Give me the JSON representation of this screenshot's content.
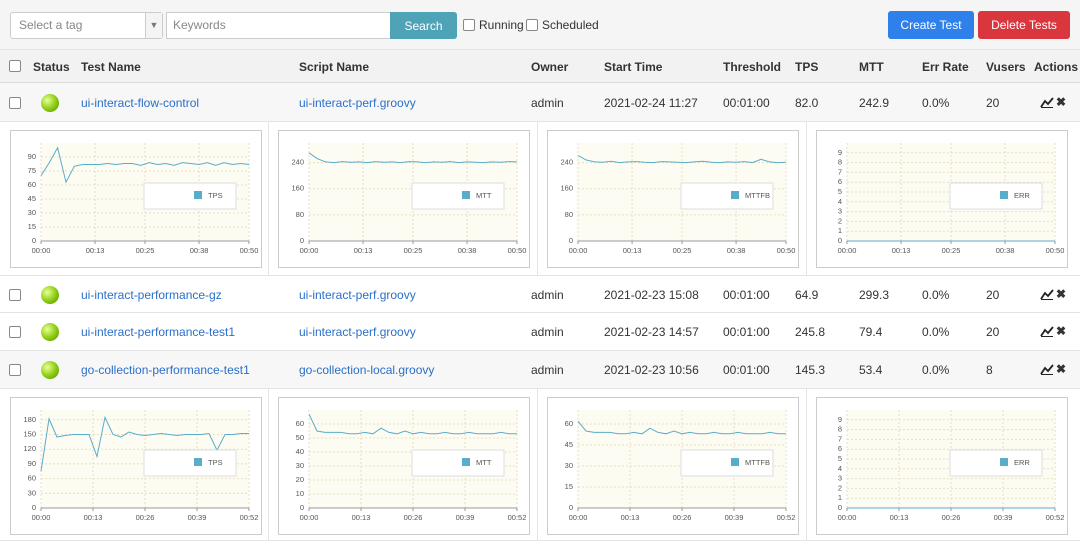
{
  "toolbar": {
    "tag_select": "Select a tag",
    "keywords": "Keywords",
    "search": "Search",
    "running": "Running",
    "scheduled": "Scheduled",
    "create": "Create Test",
    "delete": "Delete Tests"
  },
  "table": {
    "columns": [
      "Status",
      "Test Name",
      "Script Name",
      "Owner",
      "Start Time",
      "Threshold",
      "TPS",
      "MTT",
      "Err Rate",
      "Vusers",
      "Actions"
    ],
    "rows": [
      [
        "ui-interact-flow-control",
        "ui-interact-perf.groovy",
        "admin",
        "2021-02-24 11:27",
        "00:01:00",
        "82.0",
        "242.9",
        "0.0%",
        "20"
      ],
      [
        "ui-interact-performance-gz",
        "ui-interact-perf.groovy",
        "admin",
        "2021-02-23 15:08",
        "00:01:00",
        "64.9",
        "299.3",
        "0.0%",
        "20"
      ],
      [
        "ui-interact-performance-test1",
        "ui-interact-perf.groovy",
        "admin",
        "2021-02-23 14:57",
        "00:01:00",
        "245.8",
        "79.4",
        "0.0%",
        "20"
      ],
      [
        "go-collection-performance-test1",
        "go-collection-local.groovy",
        "admin",
        "2021-02-23 10:56",
        "00:01:00",
        "145.3",
        "53.4",
        "0.0%",
        "8"
      ]
    ]
  },
  "chart_data": [
    {
      "type": "line",
      "x": [
        0,
        2,
        4,
        6,
        8,
        10,
        12,
        14,
        16,
        18,
        20,
        22,
        24,
        26,
        28,
        30,
        32,
        34,
        36,
        38,
        40,
        42,
        44,
        46,
        48,
        50
      ],
      "series": [
        {
          "name": "TPS",
          "color": "#5aaccb",
          "values": [
            70,
            84,
            100,
            63,
            80,
            82,
            82,
            82,
            83,
            82,
            83,
            83,
            81,
            84,
            82,
            83,
            81,
            84,
            83,
            82,
            84,
            81,
            84,
            82,
            83,
            82
          ]
        }
      ],
      "xlim": [
        0,
        50
      ],
      "ylim": [
        0,
        105
      ],
      "yticks": [
        0,
        15,
        30,
        45,
        60,
        75,
        90
      ],
      "xticks": [
        {
          "value": 0,
          "label": "00:00"
        },
        {
          "value": 13,
          "label": "00:13"
        },
        {
          "value": 25,
          "label": "00:25"
        },
        {
          "value": 38,
          "label": "00:38"
        },
        {
          "value": 50,
          "label": "00:50"
        }
      ],
      "grid": true
    },
    {
      "type": "line",
      "x": [
        0,
        2,
        4,
        6,
        8,
        10,
        12,
        14,
        16,
        18,
        20,
        22,
        24,
        26,
        28,
        30,
        32,
        34,
        36,
        38,
        40,
        42,
        44,
        46,
        48,
        50
      ],
      "series": [
        {
          "name": "MTT",
          "color": "#5aaccb",
          "values": [
            270,
            252,
            242,
            240,
            243,
            241,
            242,
            240,
            243,
            241,
            242,
            240,
            243,
            242,
            240,
            242,
            241,
            243,
            240,
            242,
            241,
            240,
            242,
            241,
            243,
            242
          ]
        }
      ],
      "xlim": [
        0,
        50
      ],
      "ylim": [
        0,
        300
      ],
      "yticks": [
        0,
        80,
        160,
        240
      ],
      "xticks": [
        {
          "value": 0,
          "label": "00:00"
        },
        {
          "value": 13,
          "label": "00:13"
        },
        {
          "value": 25,
          "label": "00:25"
        },
        {
          "value": 38,
          "label": "00:38"
        },
        {
          "value": 50,
          "label": "00:50"
        }
      ],
      "grid": true
    },
    {
      "type": "line",
      "x": [
        0,
        2,
        4,
        6,
        8,
        10,
        12,
        14,
        16,
        18,
        20,
        22,
        24,
        26,
        28,
        30,
        32,
        34,
        36,
        38,
        40,
        42,
        44,
        46,
        48,
        50
      ],
      "series": [
        {
          "name": "MTTFB",
          "color": "#5aaccb",
          "values": [
            262,
            248,
            242,
            241,
            244,
            240,
            242,
            243,
            241,
            240,
            243,
            242,
            241,
            240,
            242,
            244,
            241,
            240,
            242,
            241,
            243,
            240,
            250,
            242,
            240,
            241
          ]
        }
      ],
      "xlim": [
        0,
        50
      ],
      "ylim": [
        0,
        300
      ],
      "yticks": [
        0,
        80,
        160,
        240
      ],
      "xticks": [
        {
          "value": 0,
          "label": "00:00"
        },
        {
          "value": 13,
          "label": "00:13"
        },
        {
          "value": 25,
          "label": "00:25"
        },
        {
          "value": 38,
          "label": "00:38"
        },
        {
          "value": 50,
          "label": "00:50"
        }
      ],
      "grid": true
    },
    {
      "type": "line",
      "x": [
        0,
        2,
        4,
        6,
        8,
        10,
        12,
        14,
        16,
        18,
        20,
        22,
        24,
        26,
        28,
        30,
        32,
        34,
        36,
        38,
        40,
        42,
        44,
        46,
        48,
        50
      ],
      "series": [
        {
          "name": "ERR",
          "color": "#5aaccb",
          "values": [
            0,
            0,
            0,
            0,
            0,
            0,
            0,
            0,
            0,
            0,
            0,
            0,
            0,
            0,
            0,
            0,
            0,
            0,
            0,
            0,
            0,
            0,
            0,
            0,
            0,
            0
          ]
        }
      ],
      "xlim": [
        0,
        50
      ],
      "ylim": [
        0,
        10
      ],
      "yticks": [
        0,
        1,
        2,
        3,
        4,
        5,
        6,
        7,
        8,
        9
      ],
      "xticks": [
        {
          "value": 0,
          "label": "00:00"
        },
        {
          "value": 13,
          "label": "00:13"
        },
        {
          "value": 25,
          "label": "00:25"
        },
        {
          "value": 38,
          "label": "00:38"
        },
        {
          "value": 50,
          "label": "00:50"
        }
      ],
      "grid": true
    },
    {
      "type": "line",
      "x": [
        0,
        2,
        4,
        6,
        8,
        10,
        12,
        14,
        16,
        18,
        20,
        22,
        24,
        26,
        28,
        30,
        32,
        34,
        36,
        38,
        40,
        42,
        44,
        46,
        48,
        50,
        52
      ],
      "series": [
        {
          "name": "TPS",
          "color": "#5aaccb",
          "values": [
            75,
            182,
            145,
            148,
            150,
            150,
            150,
            105,
            185,
            150,
            145,
            155,
            150,
            148,
            150,
            152,
            150,
            148,
            150,
            150,
            150,
            152,
            118,
            150,
            150,
            152,
            152
          ]
        }
      ],
      "xlim": [
        0,
        52
      ],
      "ylim": [
        0,
        200
      ],
      "yticks": [
        0,
        30,
        60,
        90,
        120,
        150,
        180
      ],
      "xticks": [
        {
          "value": 0,
          "label": "00:00"
        },
        {
          "value": 13,
          "label": "00:13"
        },
        {
          "value": 26,
          "label": "00:26"
        },
        {
          "value": 39,
          "label": "00:39"
        },
        {
          "value": 52,
          "label": "00:52"
        }
      ],
      "grid": true
    },
    {
      "type": "line",
      "x": [
        0,
        2,
        4,
        6,
        8,
        10,
        12,
        14,
        16,
        18,
        20,
        22,
        24,
        26,
        28,
        30,
        32,
        34,
        36,
        38,
        40,
        42,
        44,
        46,
        48,
        50,
        52
      ],
      "series": [
        {
          "name": "MTT",
          "color": "#5aaccb",
          "values": [
            67,
            55,
            54,
            54,
            54,
            53,
            53,
            54,
            53,
            57,
            54,
            53,
            55,
            53,
            54,
            53,
            53,
            54,
            53,
            53,
            54,
            53,
            53,
            53,
            54,
            53,
            53
          ]
        }
      ],
      "xlim": [
        0,
        52
      ],
      "ylim": [
        0,
        70
      ],
      "yticks": [
        0,
        10,
        20,
        30,
        40,
        50,
        60
      ],
      "xticks": [
        {
          "value": 0,
          "label": "00:00"
        },
        {
          "value": 13,
          "label": "00:13"
        },
        {
          "value": 26,
          "label": "00:26"
        },
        {
          "value": 39,
          "label": "00:39"
        },
        {
          "value": 52,
          "label": "00:52"
        }
      ],
      "grid": true
    },
    {
      "type": "line",
      "x": [
        0,
        2,
        4,
        6,
        8,
        10,
        12,
        14,
        16,
        18,
        20,
        22,
        24,
        26,
        28,
        30,
        32,
        34,
        36,
        38,
        40,
        42,
        44,
        46,
        48,
        50,
        52
      ],
      "series": [
        {
          "name": "MTTFB",
          "color": "#5aaccb",
          "values": [
            62,
            55,
            54,
            54,
            54,
            53,
            53,
            54,
            53,
            57,
            54,
            53,
            55,
            53,
            54,
            53,
            53,
            54,
            53,
            53,
            54,
            53,
            53,
            53,
            54,
            53,
            53
          ]
        }
      ],
      "xlim": [
        0,
        52
      ],
      "ylim": [
        0,
        70
      ],
      "yticks": [
        0,
        15,
        30,
        45,
        60
      ],
      "xticks": [
        {
          "value": 0,
          "label": "00:00"
        },
        {
          "value": 13,
          "label": "00:13"
        },
        {
          "value": 26,
          "label": "00:26"
        },
        {
          "value": 39,
          "label": "00:39"
        },
        {
          "value": 52,
          "label": "00:52"
        }
      ],
      "grid": true
    },
    {
      "type": "line",
      "x": [
        0,
        2,
        4,
        6,
        8,
        10,
        12,
        14,
        16,
        18,
        20,
        22,
        24,
        26,
        28,
        30,
        32,
        34,
        36,
        38,
        40,
        42,
        44,
        46,
        48,
        50,
        52
      ],
      "series": [
        {
          "name": "ERR",
          "color": "#5aaccb",
          "values": [
            0,
            0,
            0,
            0,
            0,
            0,
            0,
            0,
            0,
            0,
            0,
            0,
            0,
            0,
            0,
            0,
            0,
            0,
            0,
            0,
            0,
            0,
            0,
            0,
            0,
            0,
            0
          ]
        }
      ],
      "xlim": [
        0,
        52
      ],
      "ylim": [
        0,
        10
      ],
      "yticks": [
        0,
        1,
        2,
        3,
        4,
        5,
        6,
        7,
        8,
        9
      ],
      "xticks": [
        {
          "value": 0,
          "label": "00:00"
        },
        {
          "value": 13,
          "label": "00:13"
        },
        {
          "value": 26,
          "label": "00:26"
        },
        {
          "value": 39,
          "label": "00:39"
        },
        {
          "value": 52,
          "label": "00:52"
        }
      ],
      "grid": true
    }
  ]
}
